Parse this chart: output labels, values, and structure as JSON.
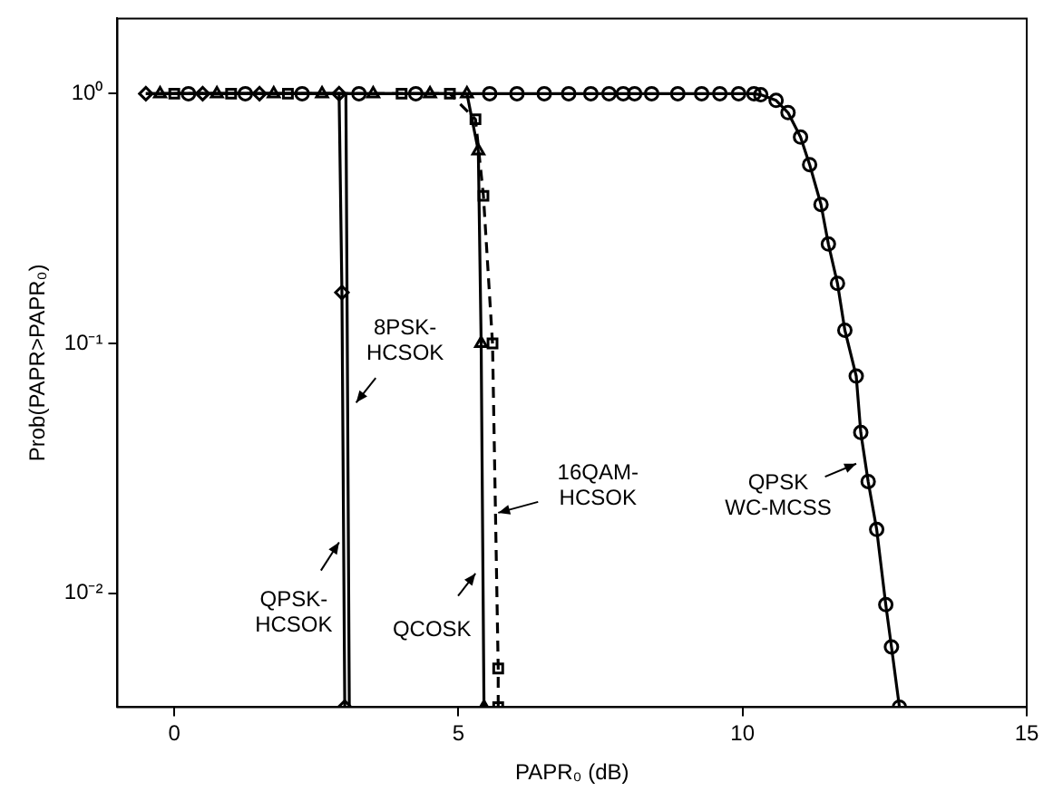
{
  "chart_data": {
    "type": "line",
    "xlabel": "PAPR₀ (dB)",
    "ylabel": "Prob(PAPR>PAPR₀)",
    "log": "y",
    "grid": false,
    "legend": false,
    "xlim": [
      -1,
      15
    ],
    "xticks": [
      0,
      5,
      10,
      15
    ],
    "ylim": [
      0.0035,
      2
    ],
    "yticks": [
      {
        "value": 0.01,
        "label": "10⁻²"
      },
      {
        "value": 0.1,
        "label": "10⁻¹"
      },
      {
        "value": 1,
        "label": "10⁰"
      }
    ],
    "series": [
      {
        "color": "#000000",
        "marker": "diamond",
        "line_style": "solid",
        "x": [
          -0.5,
          0.5,
          1.5,
          2.9,
          2.95,
          3.0
        ],
        "values": [
          1,
          1,
          1,
          1,
          0.16,
          0.0035
        ]
      },
      {
        "color": "#000000",
        "marker": "none",
        "line_style": "solid",
        "x": [
          -0.5,
          3.02,
          3.08
        ],
        "values": [
          1,
          1,
          0.0035
        ]
      },
      {
        "color": "#000000",
        "marker": "triangle",
        "line_style": "solid",
        "x": [
          -0.25,
          0.75,
          1.75,
          2.6,
          3.5,
          4.5,
          5.15,
          5.35,
          5.4,
          5.45
        ],
        "values": [
          1,
          1,
          1,
          1,
          1,
          1,
          1,
          0.59,
          0.1,
          0.0035
        ]
      },
      {
        "color": "#000000",
        "marker": "square",
        "line_style": "dashed",
        "x": [
          0,
          1,
          2,
          4,
          4.85,
          5.3,
          5.44,
          5.6,
          5.7,
          5.7
        ],
        "values": [
          1,
          1,
          1,
          1,
          1,
          0.79,
          0.39,
          0.1,
          0.005,
          0.0035
        ]
      },
      {
        "color": "#000000",
        "marker": "circle",
        "line_style": "solid",
        "x": [
          0.25,
          1.25,
          2.25,
          3.25,
          4.25,
          5.55,
          6.03,
          6.51,
          6.94,
          7.33,
          7.65,
          7.9,
          8.1,
          8.4,
          8.86,
          9.28,
          9.6,
          9.93,
          10.2,
          10.32,
          10.59,
          10.8,
          11.02,
          11.18,
          11.38,
          11.51,
          11.67,
          11.8,
          12.0,
          12.08,
          12.21,
          12.36,
          12.52,
          12.62,
          12.76
        ],
        "values": [
          1,
          1,
          1,
          1,
          1,
          1,
          1,
          1,
          1,
          1,
          1,
          1,
          1,
          1,
          1,
          1,
          1,
          1,
          1,
          0.99,
          0.94,
          0.84,
          0.67,
          0.52,
          0.36,
          0.25,
          0.174,
          0.113,
          0.074,
          0.044,
          0.028,
          0.018,
          0.009,
          0.0061,
          0.0035
        ]
      }
    ],
    "annotations": [
      {
        "text": "8PSK-HCSOK",
        "x": 3.2,
        "y": 0.058
      },
      {
        "text": "QPSK-HCSOK",
        "x": 2.9,
        "y": 0.016
      },
      {
        "text": "QCOSK",
        "x": 5.3,
        "y": 0.012
      },
      {
        "text": "16QAM-HCSOK",
        "x": 5.7,
        "y": 0.021
      },
      {
        "text": "QPSK WC-MCSS",
        "x": 12.0,
        "y": 0.033
      }
    ]
  }
}
